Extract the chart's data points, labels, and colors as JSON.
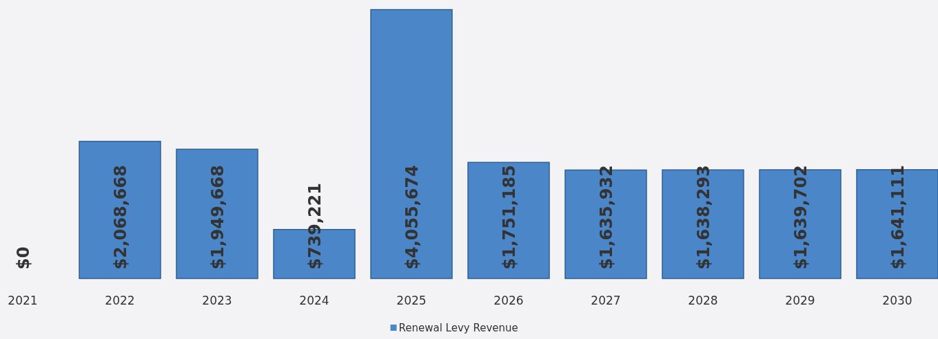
{
  "chart_data": {
    "type": "bar",
    "categories": [
      "2021",
      "2022",
      "2023",
      "2024",
      "2025",
      "2026",
      "2027",
      "2028",
      "2029",
      "2030"
    ],
    "series": [
      {
        "name": "Renewal Levy Revenue",
        "color": "#4a86c8",
        "values": [
          0,
          2068668,
          1949668,
          739221,
          4055674,
          1751185,
          1635932,
          1638293,
          1639702,
          1641111
        ],
        "value_labels": [
          "$0",
          "$2,068,668",
          "$1,949,668",
          "$739,221",
          "$4,055,674",
          "$1,751,185",
          "$1,635,932",
          "$1,638,293",
          "$1,639,702",
          "$1,641,111"
        ]
      }
    ],
    "legend": "bottom"
  }
}
